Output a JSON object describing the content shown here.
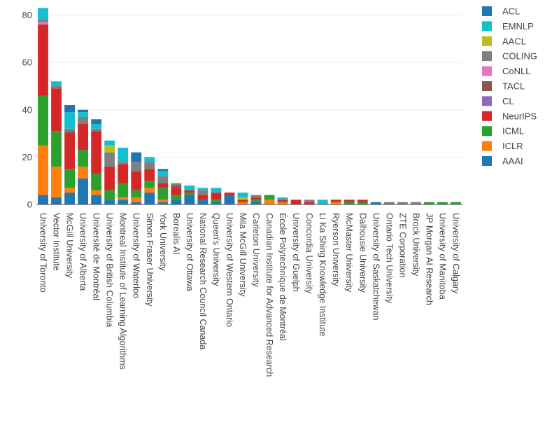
{
  "chart_data": {
    "type": "bar",
    "stacked": true,
    "title": "",
    "xlabel": "",
    "ylabel": "",
    "ylim": [
      0,
      84
    ],
    "yticks": [
      0,
      20,
      40,
      60,
      80
    ],
    "grid": "horizontal",
    "legend_position": "right",
    "categories": [
      "University of Toronto",
      "Vector Institute",
      "McGill University",
      "University of Alberta",
      "Université de Montréal",
      "University of British Columbia",
      "Montreal Institute of Learning Algorithms",
      "University of Waterloo",
      "Simon Fraser University",
      "York University",
      "Borealis AI",
      "University of Ottawa",
      "National Research Council Canada",
      "Queen's University",
      "University of Western Ontario",
      "Mila McGill University",
      "Carleton University",
      "Canadian Institute for Advanced Research",
      "École Polytechnique de Montréal",
      "University of Guelph",
      "Concordia University",
      "Li Ka Shing Knowledge Institute",
      "Ryerson University",
      "McMaster University",
      "Dalhousie University",
      "University of Saskatchewan",
      "Ontario Tech University",
      "ZTE Corporation",
      "Brock University",
      "JP Morgan AI Research",
      "University of Manitoba",
      "University of Calgary"
    ],
    "series": [
      {
        "name": "AAAI",
        "color": "#1f77b4",
        "values": [
          4,
          3,
          5,
          11,
          4,
          2,
          2,
          1,
          5,
          1,
          2,
          4,
          2,
          1,
          4,
          0,
          1,
          0,
          0,
          0,
          0,
          0,
          0,
          0,
          0,
          1,
          0,
          0,
          0,
          0,
          0,
          0
        ]
      },
      {
        "name": "ICLR",
        "color": "#ff7f0e",
        "values": [
          21,
          13,
          2,
          5,
          2,
          0,
          1,
          2,
          2,
          1,
          0,
          0,
          0,
          0,
          0,
          1,
          0,
          2,
          1,
          0,
          0,
          0,
          1,
          0,
          0,
          0,
          0,
          0,
          0,
          0,
          0,
          0
        ]
      },
      {
        "name": "ICML",
        "color": "#2ca02c",
        "values": [
          21,
          15,
          8,
          7,
          7,
          4,
          6,
          3,
          3,
          5,
          2,
          1,
          0,
          1,
          0,
          0,
          1,
          2,
          0,
          0,
          0,
          0,
          0,
          1,
          1,
          0,
          0,
          0,
          0,
          1,
          1,
          1
        ]
      },
      {
        "name": "NeurIPS",
        "color": "#d62728",
        "values": [
          30,
          18,
          15,
          11,
          18,
          10,
          8,
          8,
          5,
          2,
          3,
          1,
          2,
          3,
          1,
          1,
          1,
          0,
          1,
          2,
          1,
          0,
          1,
          1,
          1,
          0,
          0,
          0,
          0,
          0,
          0,
          0
        ]
      },
      {
        "name": "CL",
        "color": "#9467bd",
        "values": [
          0,
          0,
          0,
          0,
          0,
          0,
          0,
          0,
          0,
          0,
          0,
          0,
          0,
          0,
          0,
          0,
          0,
          0,
          0,
          0,
          0,
          0,
          0,
          0,
          0,
          0,
          0,
          0,
          0,
          0,
          0,
          0
        ]
      },
      {
        "name": "TACL",
        "color": "#8c564b",
        "values": [
          0,
          0,
          1,
          0,
          0,
          0,
          0,
          0,
          0,
          0,
          1,
          0,
          0,
          0,
          0,
          0,
          0,
          0,
          0,
          0,
          0,
          0,
          0,
          0,
          0,
          0,
          0,
          0,
          0,
          0,
          0,
          0
        ]
      },
      {
        "name": "CoNLL",
        "color": "#e377c2",
        "values": [
          1,
          0,
          0,
          0,
          0,
          0,
          0,
          0,
          0,
          0,
          0,
          0,
          0,
          0,
          0,
          0,
          0,
          0,
          0,
          0,
          0,
          0,
          0,
          0,
          0,
          0,
          0,
          0,
          0,
          0,
          0,
          0
        ]
      },
      {
        "name": "COLING",
        "color": "#7f7f7f",
        "values": [
          1,
          1,
          1,
          3,
          1,
          6,
          1,
          4,
          3,
          3,
          1,
          0,
          2,
          0,
          0,
          0,
          1,
          0,
          0,
          0,
          1,
          0,
          0,
          0,
          0,
          0,
          1,
          1,
          1,
          0,
          0,
          0
        ]
      },
      {
        "name": "AACL",
        "color": "#bcbd22",
        "values": [
          0,
          0,
          0,
          0,
          0,
          3,
          0,
          0,
          0,
          0,
          0,
          0,
          0,
          0,
          0,
          1,
          0,
          0,
          0,
          0,
          0,
          0,
          0,
          0,
          0,
          0,
          0,
          0,
          0,
          0,
          0,
          0
        ]
      },
      {
        "name": "EMNLP",
        "color": "#17becf",
        "values": [
          5,
          2,
          7,
          2,
          2,
          2,
          6,
          0,
          2,
          2,
          0,
          2,
          1,
          2,
          0,
          2,
          0,
          0,
          1,
          0,
          0,
          2,
          0,
          0,
          0,
          0,
          0,
          0,
          0,
          0,
          0,
          0
        ]
      },
      {
        "name": "ACL",
        "color": "#1f77b4",
        "values": [
          0,
          0,
          3,
          1,
          2,
          0,
          0,
          4,
          0,
          1,
          0,
          0,
          0,
          0,
          0,
          0,
          0,
          0,
          0,
          0,
          0,
          0,
          0,
          0,
          0,
          0,
          0,
          0,
          0,
          0,
          0,
          0
        ]
      }
    ],
    "legend_order": [
      "ACL",
      "EMNLP",
      "AACL",
      "COLING",
      "CoNLL",
      "TACL",
      "CL",
      "NeurIPS",
      "ICML",
      "ICLR",
      "AAAI"
    ]
  }
}
